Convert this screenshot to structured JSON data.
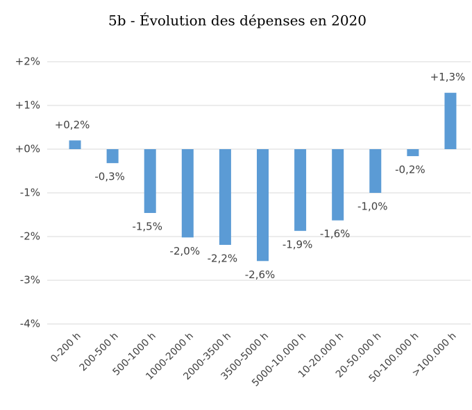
{
  "chart_data": {
    "type": "bar",
    "title": "5b - Évolution des dépenses en 2020",
    "categories": [
      "0-200 h",
      "200-500 h",
      "500-1000 h",
      "1000-2000 h",
      "2000-3500 h",
      "3500-5000 h",
      "5000-10.000 h",
      "10-20.000 h",
      "20-50.000 h",
      "50-100.000 h",
      ">100.000 h"
    ],
    "values": [
      0.2,
      -0.32,
      -1.46,
      -2.02,
      -2.19,
      -2.56,
      -1.87,
      -1.63,
      -1.0,
      -0.16,
      1.29
    ],
    "value_labels": [
      "+0,2%",
      "-0,3%",
      "-1,5%",
      "-2,0%",
      "-2,2%",
      "-2,6%",
      "-1,9%",
      "-1,6%",
      "-1,0%",
      "-0,2%",
      "+1,3%"
    ],
    "color": "#5b9bd5",
    "ylim": [
      -4,
      2
    ],
    "yticks": [
      {
        "value": -4,
        "label": "-4%"
      },
      {
        "value": -3,
        "label": "-3%"
      },
      {
        "value": -2,
        "label": "-2%"
      },
      {
        "value": -1,
        "label": "-1%"
      },
      {
        "value": 0,
        "label": "+0%"
      },
      {
        "value": 1,
        "label": "+1%"
      },
      {
        "value": 2,
        "label": "+2%"
      }
    ],
    "grid": true
  }
}
